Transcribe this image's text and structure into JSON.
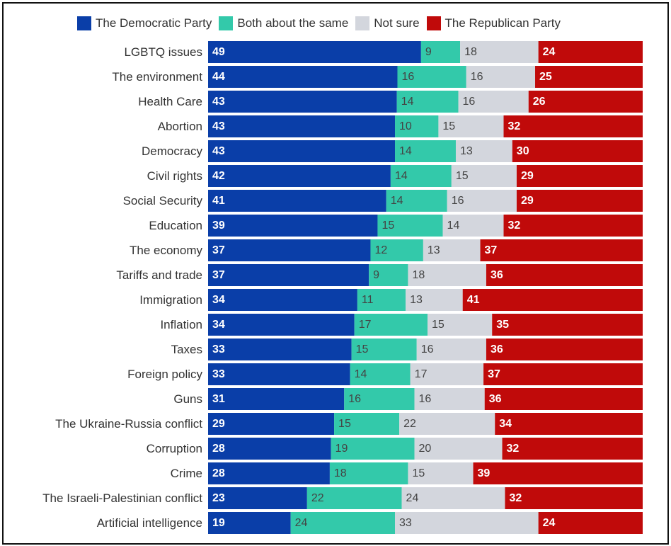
{
  "chart_data": {
    "type": "bar",
    "orientation": "horizontal-stacked-100",
    "title": "",
    "legend_position": "top",
    "categories": [
      "LGBTQ issues",
      "The environment",
      "Health Care",
      "Abortion",
      "Democracy",
      "Civil rights",
      "Social Security",
      "Education",
      "The economy",
      "Tariffs and trade",
      "Immigration",
      "Inflation",
      "Taxes",
      "Foreign policy",
      "Guns",
      "The Ukraine-Russia conflict",
      "Corruption",
      "Crime",
      "The Israeli-Palestinian conflict",
      "Artificial intelligence"
    ],
    "series": [
      {
        "name": "The Democratic Party",
        "color": "#0a3ea8",
        "label_color": "#ffffff",
        "label_bold": true,
        "values": [
          49,
          44,
          43,
          43,
          43,
          42,
          41,
          39,
          37,
          37,
          34,
          34,
          33,
          33,
          31,
          29,
          28,
          28,
          23,
          19
        ]
      },
      {
        "name": "Both about the same",
        "color": "#33c9aa",
        "label_color": "#444444",
        "label_bold": false,
        "values": [
          9,
          16,
          14,
          10,
          14,
          14,
          14,
          15,
          12,
          9,
          11,
          17,
          15,
          14,
          16,
          15,
          19,
          18,
          22,
          24
        ]
      },
      {
        "name": "Not sure",
        "color": "#d3d6dd",
        "label_color": "#444444",
        "label_bold": false,
        "values": [
          18,
          16,
          16,
          15,
          13,
          15,
          16,
          14,
          13,
          18,
          13,
          15,
          16,
          17,
          16,
          22,
          20,
          15,
          24,
          33
        ]
      },
      {
        "name": "The Republican Party",
        "color": "#c00a0a",
        "label_color": "#ffffff",
        "label_bold": true,
        "values": [
          24,
          25,
          26,
          32,
          30,
          29,
          29,
          32,
          37,
          36,
          41,
          35,
          36,
          37,
          36,
          34,
          32,
          39,
          32,
          24
        ]
      }
    ]
  }
}
